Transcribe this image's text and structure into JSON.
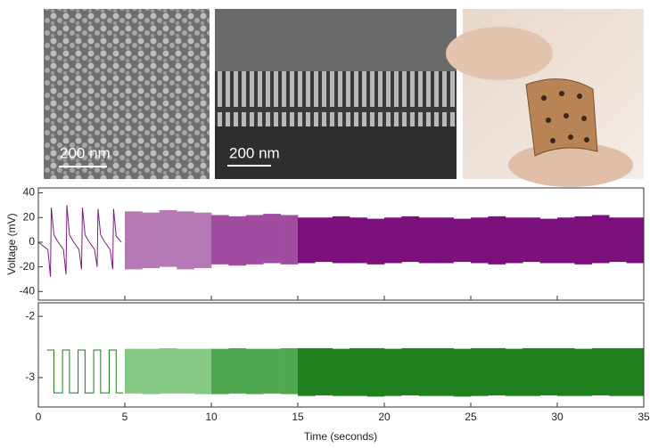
{
  "images": [
    {
      "scale_label": "200 nm"
    },
    {
      "scale_label": "200 nm"
    }
  ],
  "chart_data": [
    {
      "type": "line",
      "ylabel": "Voltage (mV)",
      "xlim": [
        0,
        35
      ],
      "xticks": [
        0,
        5,
        10,
        15,
        20,
        25,
        30,
        35
      ],
      "ylim": [
        -47,
        44
      ],
      "yticks": [
        40,
        20,
        0,
        -20,
        -40
      ],
      "series": [
        {
          "type": "line",
          "color": "#7a1f7a",
          "x": [
            0,
            0.55,
            0.7,
            0.75,
            0.9,
            1.1,
            1.45,
            1.6,
            1.65,
            1.8,
            2.0,
            2.35,
            2.5,
            2.55,
            2.7,
            2.9,
            3.25,
            3.4,
            3.45,
            3.6,
            3.8,
            4.15,
            4.3,
            4.35,
            4.5,
            4.8
          ],
          "values": [
            0,
            -6,
            -28,
            28,
            6,
            1,
            -6,
            -26,
            30,
            6,
            1,
            -6,
            -22,
            28,
            6,
            1,
            -6,
            -20,
            27,
            6,
            1,
            -6,
            -22,
            27,
            5,
            0
          ]
        },
        {
          "type": "band",
          "color": "#b57ab5",
          "x": [
            5.5,
            6.5,
            7.5,
            8.5,
            9.5
          ],
          "high": [
            25,
            24,
            26,
            25,
            24
          ],
          "low": [
            -22,
            -21,
            -20,
            -22,
            -21
          ]
        },
        {
          "type": "band",
          "color": "#a04ca0",
          "x": [
            10.5,
            11.5,
            12.5,
            13.5,
            14.5
          ],
          "high": [
            22,
            21,
            22,
            23,
            22
          ],
          "low": [
            -18,
            -19,
            -18,
            -17,
            -18
          ]
        },
        {
          "type": "band",
          "color": "#7b0f7b",
          "x": [
            15.5,
            16.5,
            17.5,
            18.5,
            19.5,
            20.5,
            21.5,
            22.5,
            23.5,
            24.5,
            25.5,
            26.5,
            27.5,
            28.5,
            29.5,
            30.5,
            31.5,
            32.5,
            33.5,
            34.5
          ],
          "high": [
            20,
            20,
            21,
            20,
            19,
            20,
            21,
            20,
            20,
            19,
            20,
            21,
            20,
            20,
            19,
            20,
            21,
            22,
            20,
            20
          ],
          "low": [
            -17,
            -16,
            -17,
            -17,
            -18,
            -17,
            -16,
            -17,
            -17,
            -16,
            -17,
            -18,
            -17,
            -16,
            -17,
            -17,
            -18,
            -17,
            -16,
            -17
          ]
        }
      ]
    },
    {
      "type": "line",
      "xlabel": "Time (seconds)",
      "xlim": [
        0,
        35
      ],
      "xticks": [
        0,
        5,
        10,
        15,
        20,
        25,
        30,
        35
      ],
      "ylim": [
        -3.48,
        -1.78
      ],
      "yticks": [
        -2,
        -3
      ],
      "series": [
        {
          "type": "line",
          "color": "#1a7a1a",
          "x": [
            0.5,
            0.9,
            0.9,
            1.4,
            1.4,
            1.8,
            1.8,
            2.3,
            2.3,
            2.7,
            2.7,
            3.2,
            3.2,
            3.6,
            3.6,
            4.1,
            4.1,
            4.5,
            4.5,
            4.9
          ],
          "values": [
            -2.55,
            -2.55,
            -3.25,
            -3.25,
            -2.55,
            -2.55,
            -3.25,
            -3.25,
            -2.55,
            -2.55,
            -3.25,
            -3.25,
            -2.55,
            -2.55,
            -3.25,
            -3.25,
            -2.55,
            -2.55,
            -3.25,
            -3.25
          ]
        },
        {
          "type": "band",
          "color": "#86c886",
          "x": [
            5.5,
            6.5,
            7.5,
            8.5,
            9.5
          ],
          "high": [
            -2.53,
            -2.53,
            -2.52,
            -2.53,
            -2.53
          ],
          "low": [
            -3.26,
            -3.27,
            -3.26,
            -3.26,
            -3.27
          ]
        },
        {
          "type": "band",
          "color": "#4fa84f",
          "x": [
            10.5,
            11.5,
            12.5,
            13.5,
            14.5
          ],
          "high": [
            -2.53,
            -2.52,
            -2.53,
            -2.53,
            -2.52
          ],
          "low": [
            -3.27,
            -3.26,
            -3.27,
            -3.26,
            -3.27
          ]
        },
        {
          "type": "band",
          "color": "#1e801e",
          "x": [
            15.5,
            16.5,
            17.5,
            18.5,
            19.5,
            20.5,
            21.5,
            22.5,
            23.5,
            24.5,
            25.5,
            26.5,
            27.5,
            28.5,
            29.5,
            30.5,
            31.5,
            32.5,
            33.5,
            34.5
          ],
          "high": [
            -2.52,
            -2.52,
            -2.53,
            -2.52,
            -2.52,
            -2.53,
            -2.52,
            -2.52,
            -2.52,
            -2.53,
            -2.52,
            -2.52,
            -2.53,
            -2.52,
            -2.52,
            -2.52,
            -2.53,
            -2.52,
            -2.52,
            -2.52
          ],
          "low": [
            -3.3,
            -3.29,
            -3.3,
            -3.3,
            -3.31,
            -3.3,
            -3.29,
            -3.3,
            -3.3,
            -3.31,
            -3.3,
            -3.29,
            -3.3,
            -3.3,
            -3.29,
            -3.3,
            -3.3,
            -3.29,
            -3.3,
            -3.3
          ]
        }
      ]
    }
  ]
}
